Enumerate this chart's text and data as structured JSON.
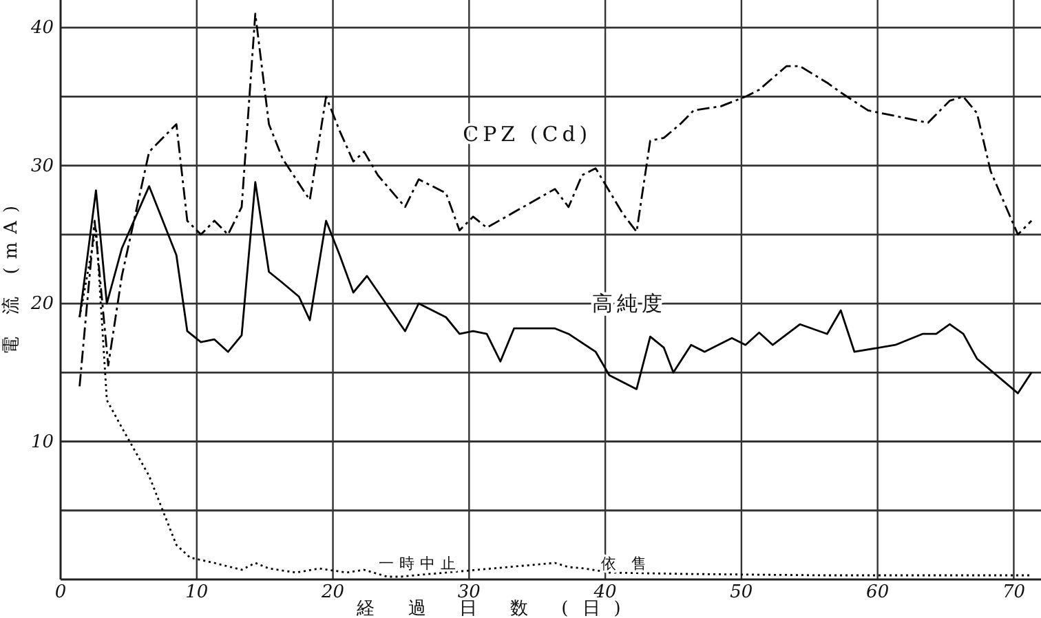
{
  "chart_data": {
    "type": "line",
    "xlabel": "経 過 日 数 (日)",
    "ylabel": "電 流 (mA)",
    "xlim": [
      0,
      72
    ],
    "ylim": [
      0,
      42
    ],
    "xticks": [
      0,
      10,
      20,
      30,
      40,
      50,
      60,
      70
    ],
    "yticks": [
      {
        "value": 5,
        "label": null
      },
      10,
      {
        "value": 15,
        "label": null
      },
      20,
      {
        "value": 25,
        "label": null
      },
      30,
      {
        "value": 35,
        "label": null
      },
      40
    ],
    "grid": true,
    "legend": false,
    "marker": "none",
    "series": [
      {
        "name": "CPZ (Cd)",
        "color": "#000000",
        "line_style": "dashed",
        "x": [
          1.4,
          2.5,
          3.5,
          4.5,
          6.5,
          8.5,
          9.3,
          10.3,
          11.3,
          12.3,
          13.3,
          14.3,
          15.3,
          16.3,
          18.3,
          19.5,
          20.5,
          21.5,
          22.3,
          23.3,
          25.3,
          26.3,
          28.3,
          29.3,
          30.3,
          31.3,
          36.3,
          37.3,
          38.3,
          39.3,
          41.3,
          42.3,
          43.3,
          44.3,
          45.5,
          46.5,
          48.5,
          50.3,
          51.3,
          53.3,
          54.3,
          56.3,
          57.3,
          59.3,
          63.7,
          65.3,
          66.3,
          67.3,
          68.3,
          70.3,
          71.3
        ],
        "values": [
          14,
          26,
          15.5,
          22,
          31,
          33,
          26,
          25,
          26,
          25,
          27,
          41,
          33,
          30.5,
          27.5,
          35,
          32.5,
          30.3,
          31,
          29.3,
          27,
          29,
          28,
          25.3,
          26.3,
          25.5,
          28.3,
          27,
          29.3,
          29.8,
          26.5,
          25.2,
          31.8,
          32,
          33,
          34,
          34.3,
          35,
          35.5,
          37.2,
          37.2,
          36,
          35.3,
          34,
          33.1,
          34.7,
          35,
          33.8,
          29.6,
          25,
          26
        ]
      },
      {
        "name": "高純度",
        "color": "#000000",
        "line_style": "solid",
        "x": [
          1.4,
          2.6,
          3.4,
          4.5,
          6.5,
          8.5,
          9.3,
          10.3,
          11.3,
          12.3,
          13.3,
          14.3,
          15.3,
          16.3,
          17.5,
          18.3,
          19.5,
          20.5,
          21.5,
          22.5,
          25.3,
          26.3,
          28.3,
          29.3,
          30.3,
          31.3,
          32.3,
          33.3,
          36.3,
          37.3,
          39.3,
          40.3,
          42.3,
          43.3,
          44.3,
          45,
          46.3,
          47.3,
          49.3,
          50.3,
          51.3,
          52.3,
          54.3,
          56.3,
          57.3,
          58.3,
          61.3,
          63.3,
          64.3,
          65.3,
          66.3,
          67.3,
          70.3,
          71.3
        ],
        "values": [
          19,
          28.2,
          20,
          24,
          28.5,
          23.5,
          18,
          17.2,
          17.4,
          16.5,
          17.7,
          28.8,
          22.3,
          21.5,
          20.5,
          18.8,
          26,
          23.5,
          20.8,
          22,
          18,
          20,
          19,
          17.8,
          18,
          17.8,
          15.8,
          18.2,
          18.2,
          17.8,
          16.5,
          14.8,
          13.8,
          17.6,
          16.8,
          15,
          17,
          16.5,
          17.5,
          17,
          17.9,
          17,
          18.5,
          17.8,
          19.5,
          16.5,
          17,
          17.8,
          17.8,
          18.5,
          17.8,
          16,
          13.5,
          15
        ]
      },
      {
        "color": "#000000",
        "line_style": "dotted",
        "x": [
          1.4,
          2.6,
          3.4,
          4.5,
          6.5,
          8.5,
          9.5,
          11.3,
          13.3,
          14.3,
          15.3,
          17.3,
          19,
          21,
          22.3,
          24,
          25,
          26,
          36.3,
          37.3,
          38.5,
          40.3,
          46,
          56,
          71.3
        ],
        "values": [
          19,
          25.5,
          13,
          11,
          7.5,
          2.5,
          1.6,
          1.2,
          0.7,
          1.2,
          0.8,
          0.5,
          0.8,
          0.5,
          0.7,
          0.2,
          0.2,
          0.3,
          1.2,
          0.9,
          0.8,
          0.5,
          0.4,
          0.3,
          0.3
        ]
      }
    ],
    "annotations": [
      "一時中止",
      "依 售"
    ]
  }
}
